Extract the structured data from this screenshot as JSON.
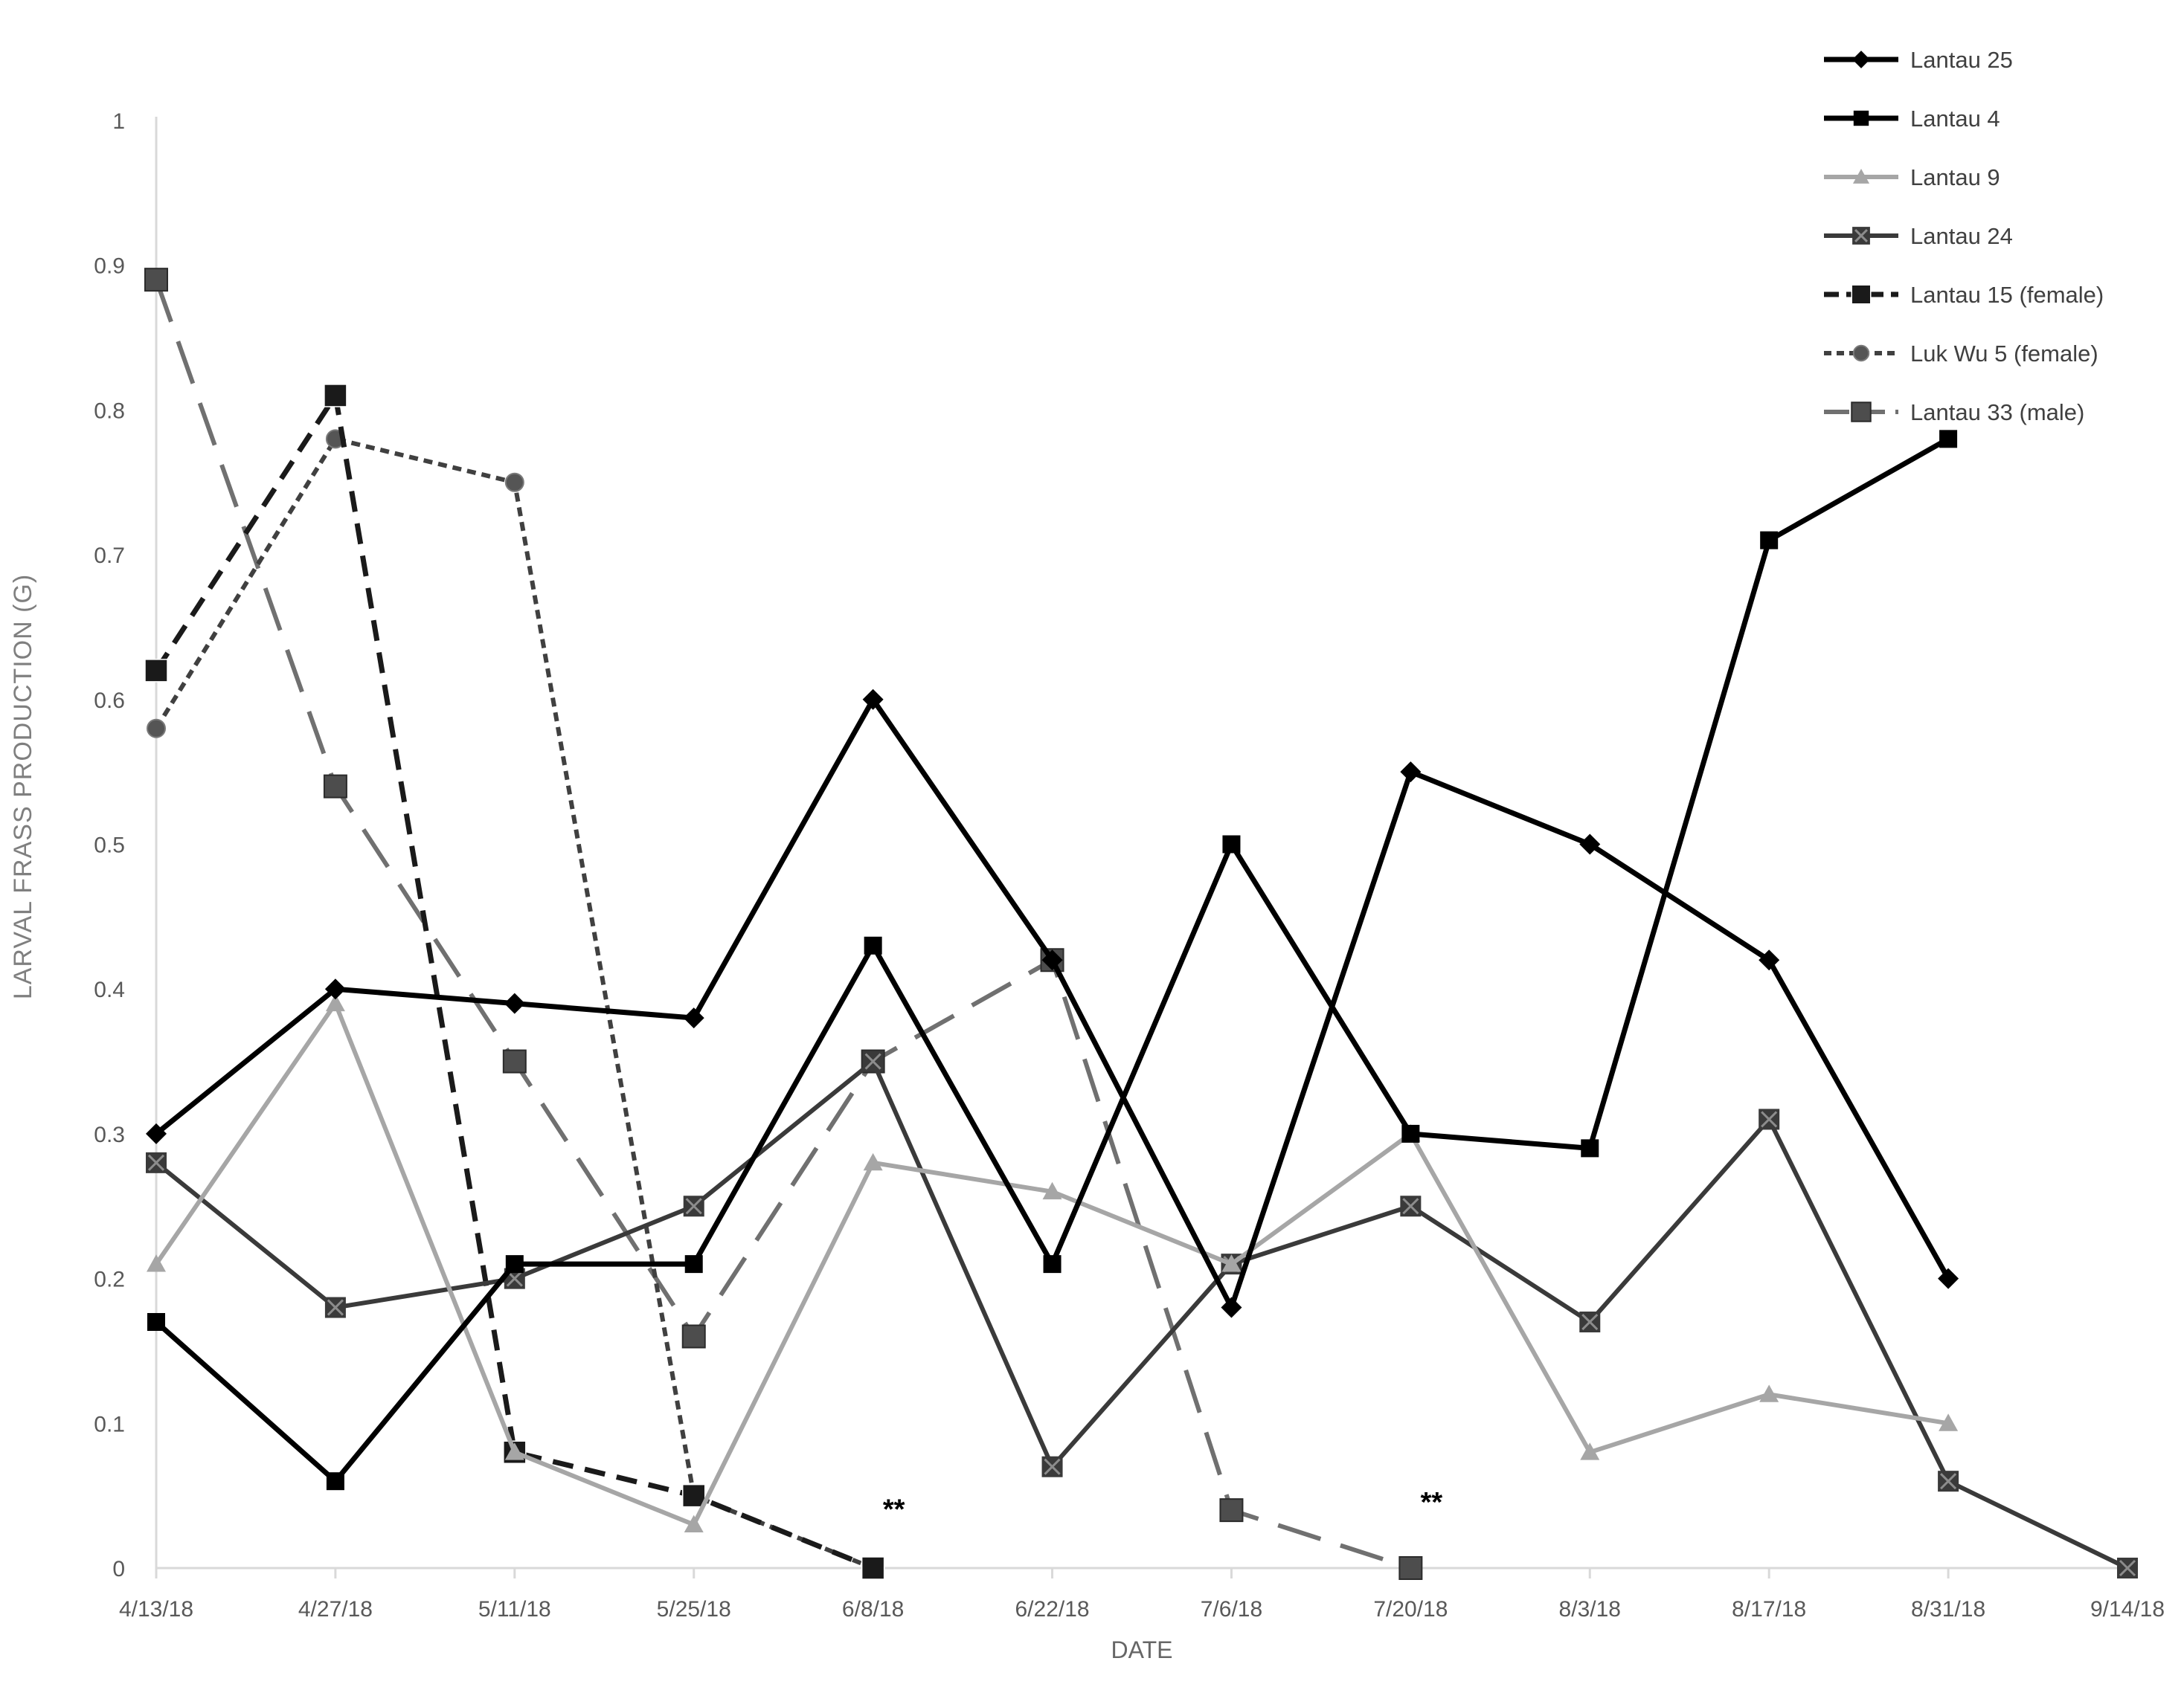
{
  "chart_data": {
    "type": "line",
    "title": "",
    "xlabel": "DATE",
    "ylabel": "LARVAL FRASS PRODUCTION (G)",
    "ylim": [
      0,
      1
    ],
    "yticks": [
      "0",
      "0.1",
      "0.2",
      "0.3",
      "0.4",
      "0.5",
      "0.6",
      "0.7",
      "0.8",
      "0.9",
      "1"
    ],
    "grid": false,
    "legend_position": "top-right",
    "categories": [
      "4/13/18",
      "4/27/18",
      "5/11/18",
      "5/25/18",
      "6/8/18",
      "6/22/18",
      "7/6/18",
      "7/20/18",
      "8/3/18",
      "8/17/18",
      "8/31/18",
      "9/14/18"
    ],
    "annotations": [
      {
        "text": "**",
        "category": "6/8/18",
        "y": 0.03
      },
      {
        "text": "**",
        "category": "7/20/18",
        "y": 0.035
      }
    ],
    "series": [
      {
        "name": "Lantau 25",
        "color": "#000000",
        "marker": "diamond",
        "dash": "solid",
        "values": [
          0.3,
          0.4,
          0.39,
          0.38,
          0.6,
          0.42,
          0.18,
          0.55,
          0.5,
          0.42,
          0.2,
          null
        ]
      },
      {
        "name": "Lantau 4",
        "color": "#000000",
        "marker": "square",
        "dash": "solid",
        "values": [
          0.17,
          0.06,
          0.21,
          0.21,
          0.43,
          0.21,
          0.5,
          0.3,
          0.29,
          0.71,
          0.78,
          null
        ]
      },
      {
        "name": "Lantau 9",
        "color": "#a6a6a6",
        "marker": "triangle",
        "dash": "solid",
        "values": [
          0.21,
          0.39,
          0.08,
          0.03,
          0.28,
          0.26,
          0.21,
          0.3,
          0.08,
          0.12,
          0.1,
          null
        ]
      },
      {
        "name": "Lantau 24",
        "color": "#3a3a3a",
        "marker": "x-square",
        "dash": "solid",
        "values": [
          0.28,
          0.18,
          0.2,
          0.25,
          0.35,
          0.07,
          0.21,
          0.25,
          0.17,
          0.31,
          0.06,
          0.0
        ]
      },
      {
        "name": "Lantau 15 (female)",
        "color": "#1a1a1a",
        "marker": "big-square",
        "dash": "long-dash",
        "values": [
          0.62,
          0.81,
          0.08,
          0.05,
          0.0,
          null,
          null,
          null,
          null,
          null,
          null,
          null
        ]
      },
      {
        "name": "Luk Wu 5 (female)",
        "color": "#404040",
        "marker": "circle",
        "dash": "short-dash",
        "values": [
          0.58,
          0.78,
          0.75,
          0.05,
          0.0,
          null,
          null,
          null,
          null,
          null,
          null,
          null
        ]
      },
      {
        "name": "Lantau 33 (male)",
        "color": "#707070",
        "marker": "gray-square",
        "dash": "dash-gap",
        "values": [
          0.89,
          0.54,
          0.35,
          0.16,
          0.35,
          0.42,
          0.04,
          0.0,
          null,
          null,
          null,
          null
        ]
      }
    ]
  }
}
